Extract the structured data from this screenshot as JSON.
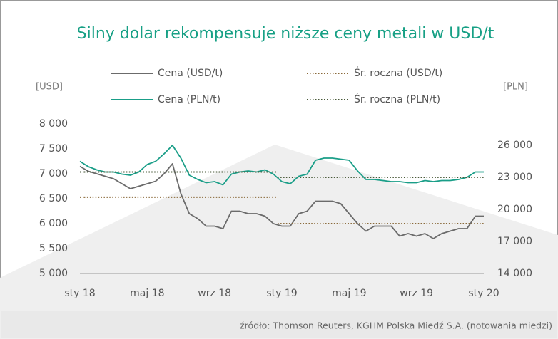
{
  "chart_data": {
    "type": "line",
    "title": "Silny dolar rekompensuje niższe ceny metali w USD/t",
    "y_label": "[USD]",
    "y2_label": "[PLN]",
    "source": "źródło: Thomson Reuters, KGHM Polska Miedź S.A. (notowania miedzi)",
    "categories": [
      "sty 18",
      null,
      null,
      null,
      null,
      null,
      null,
      null,
      "maj 18",
      null,
      null,
      null,
      null,
      null,
      null,
      null,
      "wrz 18",
      null,
      null,
      null,
      null,
      null,
      null,
      null,
      "sty 19",
      null,
      null,
      null,
      null,
      null,
      null,
      null,
      "maj 19",
      null,
      null,
      null,
      null,
      null,
      null,
      null,
      "wrz 19",
      null,
      null,
      null,
      null,
      null,
      null,
      null,
      "sty 20"
    ],
    "series": [
      {
        "name": "Cena (USD/t)",
        "color": "#6b6b6b",
        "style": "solid",
        "axis": "y",
        "values": [
          7150,
          7050,
          7000,
          6950,
          6900,
          6800,
          6700,
          6750,
          6800,
          6850,
          7000,
          7200,
          6600,
          6200,
          6100,
          5950,
          5950,
          5900,
          6250,
          6250,
          6200,
          6200,
          6150,
          6000,
          5950,
          5950,
          6200,
          6250,
          6450,
          6450,
          6450,
          6400,
          6200,
          6000,
          5850,
          5950,
          5950,
          5950,
          5750,
          5800,
          5750,
          5800,
          5700,
          5800,
          5850,
          5900,
          5900,
          6150,
          6150
        ]
      },
      {
        "name": "Śr. roczna (USD/t)",
        "color": "#8a6a3a",
        "style": "dotted",
        "axis": "y",
        "values": [
          6530,
          6530,
          6530,
          6530,
          6530,
          6530,
          6530,
          6530,
          6530,
          6530,
          6530,
          6530,
          6530,
          6530,
          6530,
          6530,
          6530,
          6530,
          6530,
          6530,
          6530,
          6530,
          6530,
          6530,
          6000,
          6000,
          6000,
          6000,
          6000,
          6000,
          6000,
          6000,
          6000,
          6000,
          6000,
          6000,
          6000,
          6000,
          6000,
          6000,
          6000,
          6000,
          6000,
          6000,
          6000,
          6000,
          6000,
          6000,
          6000
        ]
      },
      {
        "name": "Cena (PLN/t)",
        "color": "#1a9e88",
        "style": "solid",
        "axis": "y2",
        "values": [
          24500,
          24000,
          23700,
          23500,
          23500,
          23300,
          23200,
          23500,
          24200,
          24500,
          25200,
          26000,
          24800,
          23200,
          22800,
          22500,
          22600,
          22300,
          23300,
          23500,
          23600,
          23500,
          23700,
          23300,
          22600,
          22400,
          23100,
          23300,
          24600,
          24800,
          24800,
          24700,
          24600,
          23600,
          22800,
          22800,
          22700,
          22600,
          22600,
          22500,
          22500,
          22700,
          22600,
          22700,
          22700,
          22800,
          23000,
          23500,
          23500
        ]
      },
      {
        "name": "Śr. roczna (PLN/t)",
        "color": "#4a5a3a",
        "style": "dotted",
        "axis": "y2",
        "values": [
          23500,
          23500,
          23500,
          23500,
          23500,
          23500,
          23500,
          23500,
          23500,
          23500,
          23500,
          23500,
          23500,
          23500,
          23500,
          23500,
          23500,
          23500,
          23500,
          23500,
          23500,
          23500,
          23500,
          23500,
          23000,
          23000,
          23000,
          23000,
          23000,
          23000,
          23000,
          23000,
          23000,
          23000,
          23000,
          23000,
          23000,
          23000,
          23000,
          23000,
          23000,
          23000,
          23000,
          23000,
          23000,
          23000,
          23000,
          23000,
          23000
        ]
      }
    ],
    "ylim": [
      5000,
      8000
    ],
    "yticks": [
      {
        "value": 5000,
        "label": "5 000"
      },
      {
        "value": 5500,
        "label": "5 500"
      },
      {
        "value": 6000,
        "label": "6 000"
      },
      {
        "value": 6500,
        "label": "6 500"
      },
      {
        "value": 7000,
        "label": "7 000"
      },
      {
        "value": 7500,
        "label": "7 500"
      },
      {
        "value": 8000,
        "label": "8 000"
      }
    ],
    "y2lim": [
      14000,
      28000
    ],
    "y2ticks": [
      {
        "value": 14000,
        "label": "14 000"
      },
      {
        "value": 17000,
        "label": "17 000"
      },
      {
        "value": 20000,
        "label": "20 000"
      },
      {
        "value": 23000,
        "label": "23 000"
      },
      {
        "value": 26000,
        "label": "26 000"
      }
    ]
  }
}
